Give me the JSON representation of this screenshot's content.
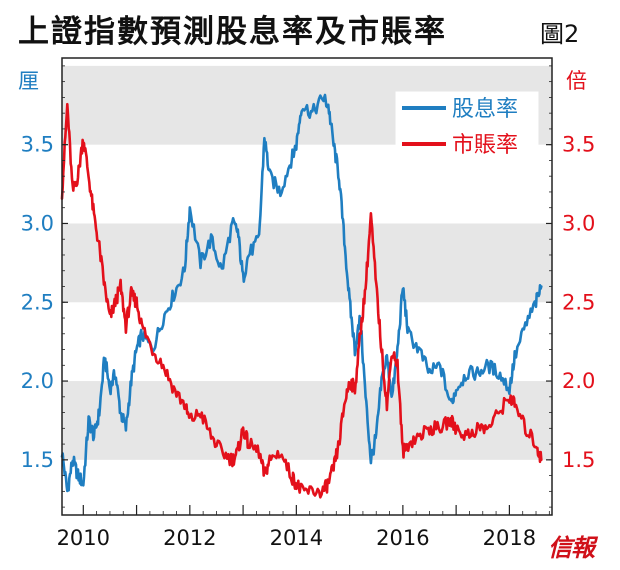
{
  "title": "上證指數預測股息率及市賬率",
  "figure_label": "圖2",
  "publisher_mark": "信報",
  "colors": {
    "dividend_yield": "#1f7ec1",
    "pb_ratio": "#e3101b",
    "band": "#e6e6e6",
    "frame": "#222222"
  },
  "chart_data": {
    "type": "line",
    "title": "上證指數預測股息率及市賬率",
    "legend_position": "top-right",
    "grid": false,
    "x_ticks": [
      "2010",
      "2012",
      "2014",
      "2016",
      "2018"
    ],
    "xlim": [
      "2009.6",
      "2018.8"
    ],
    "left_axis": {
      "unit_label": "厘",
      "ylim": [
        1.15,
        4.05
      ],
      "ticks": [
        "1.5",
        "2.0",
        "2.5",
        "3.0",
        "3.5"
      ]
    },
    "right_axis": {
      "unit_label": "倍",
      "ylim": [
        1.15,
        4.05
      ],
      "ticks": [
        "1.5",
        "2.0",
        "2.5",
        "3.0",
        "3.5"
      ]
    },
    "series": [
      {
        "name": "股息率",
        "axis": "left",
        "points": [
          [
            "2009.6",
            1.55
          ],
          [
            "2009.7",
            1.3
          ],
          [
            "2009.8",
            1.5
          ],
          [
            "2009.9",
            1.4
          ],
          [
            "2010.0",
            1.35
          ],
          [
            "2010.1",
            1.75
          ],
          [
            "2010.2",
            1.65
          ],
          [
            "2010.3",
            1.8
          ],
          [
            "2010.4",
            2.15
          ],
          [
            "2010.5",
            1.95
          ],
          [
            "2010.6",
            2.05
          ],
          [
            "2010.7",
            1.8
          ],
          [
            "2010.8",
            1.7
          ],
          [
            "2010.9",
            2.0
          ],
          [
            "2011.0",
            2.2
          ],
          [
            "2011.1",
            2.3
          ],
          [
            "2011.3",
            2.2
          ],
          [
            "2011.5",
            2.4
          ],
          [
            "2011.7",
            2.55
          ],
          [
            "2011.9",
            2.7
          ],
          [
            "2012.0",
            3.1
          ],
          [
            "2012.2",
            2.75
          ],
          [
            "2012.4",
            2.9
          ],
          [
            "2012.6",
            2.7
          ],
          [
            "2012.8",
            3.0
          ],
          [
            "2012.9",
            2.95
          ],
          [
            "2013.0",
            2.65
          ],
          [
            "2013.1",
            2.8
          ],
          [
            "2013.3",
            2.9
          ],
          [
            "2013.4",
            3.55
          ],
          [
            "2013.5",
            3.3
          ],
          [
            "2013.7",
            3.2
          ],
          [
            "2013.9",
            3.4
          ],
          [
            "2014.0",
            3.5
          ],
          [
            "2014.1",
            3.75
          ],
          [
            "2014.3",
            3.7
          ],
          [
            "2014.5",
            3.8
          ],
          [
            "2014.6",
            3.75
          ],
          [
            "2014.7",
            3.5
          ],
          [
            "2014.8",
            3.3
          ],
          [
            "2014.9",
            2.9
          ],
          [
            "2015.0",
            2.5
          ],
          [
            "2015.1",
            2.2
          ],
          [
            "2015.2",
            2.4
          ],
          [
            "2015.3",
            1.9
          ],
          [
            "2015.4",
            1.5
          ],
          [
            "2015.5",
            1.65
          ],
          [
            "2015.6",
            2.0
          ],
          [
            "2015.7",
            2.15
          ],
          [
            "2015.8",
            1.9
          ],
          [
            "2015.9",
            2.2
          ],
          [
            "2016.0",
            2.6
          ],
          [
            "2016.1",
            2.3
          ],
          [
            "2016.3",
            2.2
          ],
          [
            "2016.5",
            2.05
          ],
          [
            "2016.7",
            2.1
          ],
          [
            "2016.9",
            1.85
          ],
          [
            "2017.0",
            1.95
          ],
          [
            "2017.2",
            2.05
          ],
          [
            "2017.4",
            2.05
          ],
          [
            "2017.6",
            2.1
          ],
          [
            "2017.8",
            2.05
          ],
          [
            "2018.0",
            1.95
          ],
          [
            "2018.1",
            2.15
          ],
          [
            "2018.3",
            2.35
          ],
          [
            "2018.5",
            2.5
          ],
          [
            "2018.6",
            2.6
          ]
        ]
      },
      {
        "name": "市賬率",
        "axis": "right",
        "points": [
          [
            "2009.6",
            3.2
          ],
          [
            "2009.7",
            3.75
          ],
          [
            "2009.8",
            3.2
          ],
          [
            "2009.9",
            3.3
          ],
          [
            "2010.0",
            3.55
          ],
          [
            "2010.1",
            3.3
          ],
          [
            "2010.2",
            3.05
          ],
          [
            "2010.3",
            2.85
          ],
          [
            "2010.4",
            2.6
          ],
          [
            "2010.5",
            2.4
          ],
          [
            "2010.6",
            2.5
          ],
          [
            "2010.7",
            2.6
          ],
          [
            "2010.8",
            2.35
          ],
          [
            "2010.9",
            2.55
          ],
          [
            "2011.0",
            2.5
          ],
          [
            "2011.1",
            2.35
          ],
          [
            "2011.3",
            2.2
          ],
          [
            "2011.5",
            2.1
          ],
          [
            "2011.7",
            1.95
          ],
          [
            "2011.9",
            1.85
          ],
          [
            "2012.0",
            1.75
          ],
          [
            "2012.2",
            1.8
          ],
          [
            "2012.4",
            1.65
          ],
          [
            "2012.6",
            1.55
          ],
          [
            "2012.8",
            1.5
          ],
          [
            "2012.9",
            1.55
          ],
          [
            "2013.0",
            1.7
          ],
          [
            "2013.1",
            1.6
          ],
          [
            "2013.3",
            1.55
          ],
          [
            "2013.4",
            1.4
          ],
          [
            "2013.5",
            1.5
          ],
          [
            "2013.7",
            1.55
          ],
          [
            "2013.9",
            1.4
          ],
          [
            "2014.0",
            1.35
          ],
          [
            "2014.1",
            1.3
          ],
          [
            "2014.3",
            1.3
          ],
          [
            "2014.5",
            1.3
          ],
          [
            "2014.6",
            1.35
          ],
          [
            "2014.7",
            1.45
          ],
          [
            "2014.8",
            1.6
          ],
          [
            "2014.9",
            1.85
          ],
          [
            "2015.0",
            2.0
          ],
          [
            "2015.1",
            1.95
          ],
          [
            "2015.2",
            2.3
          ],
          [
            "2015.3",
            2.6
          ],
          [
            "2015.4",
            3.05
          ],
          [
            "2015.5",
            2.6
          ],
          [
            "2015.6",
            2.2
          ],
          [
            "2015.7",
            1.85
          ],
          [
            "2015.8",
            2.2
          ],
          [
            "2015.9",
            2.1
          ],
          [
            "2016.0",
            1.55
          ],
          [
            "2016.1",
            1.6
          ],
          [
            "2016.3",
            1.65
          ],
          [
            "2016.5",
            1.7
          ],
          [
            "2016.7",
            1.7
          ],
          [
            "2016.9",
            1.75
          ],
          [
            "2017.0",
            1.7
          ],
          [
            "2017.2",
            1.65
          ],
          [
            "2017.4",
            1.7
          ],
          [
            "2017.6",
            1.7
          ],
          [
            "2017.8",
            1.8
          ],
          [
            "2018.0",
            1.9
          ],
          [
            "2018.1",
            1.85
          ],
          [
            "2018.3",
            1.7
          ],
          [
            "2018.5",
            1.6
          ],
          [
            "2018.6",
            1.5
          ]
        ]
      }
    ]
  }
}
